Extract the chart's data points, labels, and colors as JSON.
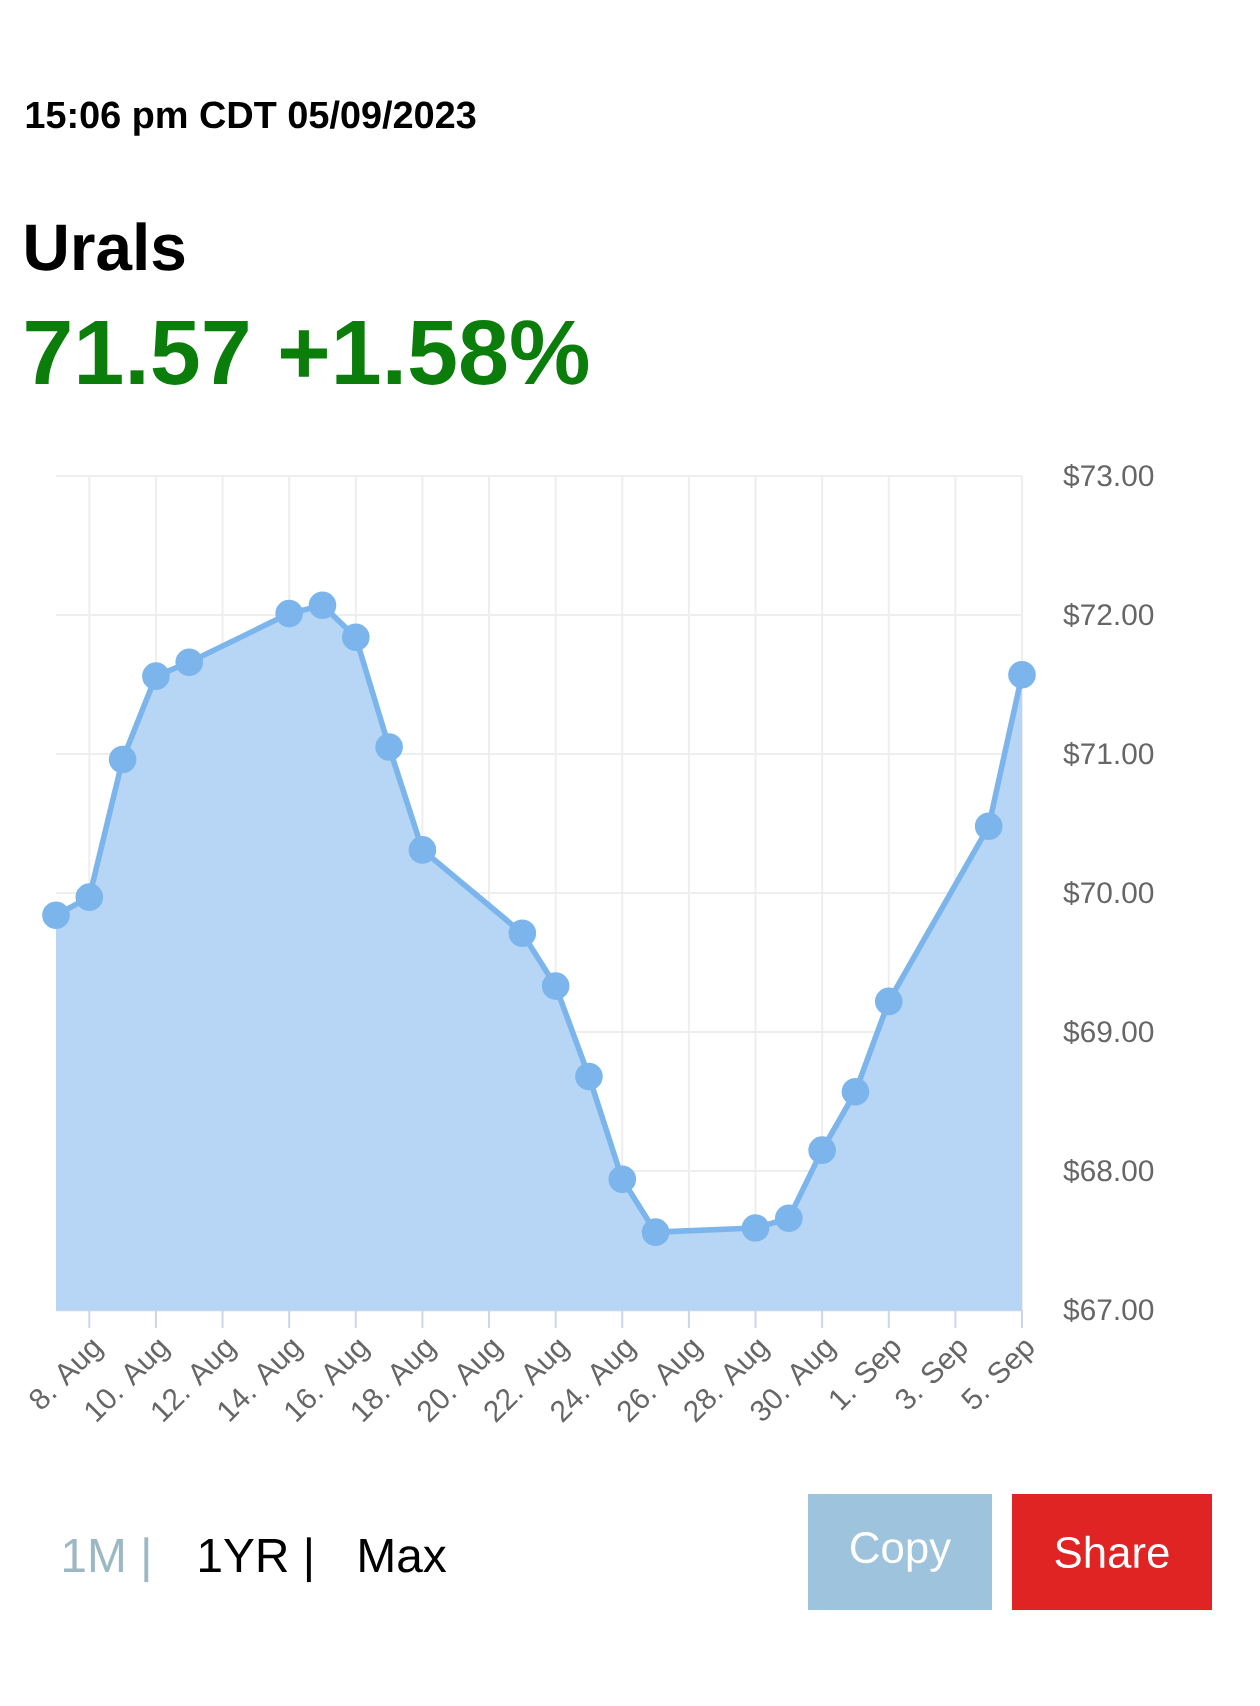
{
  "chart_data": {
    "type": "area",
    "title": "Urals",
    "subtitle": "71.57 +1.58%",
    "annotations": [
      "15:06 pm CDT 05/09/2023",
      "1M |",
      "1YR |",
      "Max",
      "Copy",
      "Share"
    ],
    "x": [
      "2023-08-07",
      "2023-08-08",
      "2023-08-09",
      "2023-08-10",
      "2023-08-11",
      "2023-08-14",
      "2023-08-15",
      "2023-08-16",
      "2023-08-17",
      "2023-08-18",
      "2023-08-21",
      "2023-08-22",
      "2023-08-23",
      "2023-08-24",
      "2023-08-25",
      "2023-08-28",
      "2023-08-29",
      "2023-08-30",
      "2023-08-31",
      "2023-09-01",
      "2023-09-04",
      "2023-09-05"
    ],
    "series": [
      {
        "color": "#7cb5ec",
        "values": [
          69.84,
          69.97,
          70.96,
          71.56,
          71.66,
          72.01,
          72.07,
          71.84,
          71.05,
          70.31,
          69.71,
          69.33,
          68.68,
          67.94,
          67.56,
          67.59,
          67.66,
          68.15,
          68.57,
          69.22,
          70.48,
          71.57
        ]
      }
    ],
    "xlim": [
      "2023-08-07",
      "2023-09-05"
    ],
    "xticks": [
      {
        "value": "2023-08-08",
        "label": "8. Aug"
      },
      {
        "value": "2023-08-10",
        "label": "10. Aug"
      },
      {
        "value": "2023-08-12",
        "label": "12. Aug"
      },
      {
        "value": "2023-08-14",
        "label": "14. Aug"
      },
      {
        "value": "2023-08-16",
        "label": "16. Aug"
      },
      {
        "value": "2023-08-18",
        "label": "18. Aug"
      },
      {
        "value": "2023-08-20",
        "label": "20. Aug"
      },
      {
        "value": "2023-08-22",
        "label": "22. Aug"
      },
      {
        "value": "2023-08-24",
        "label": "24. Aug"
      },
      {
        "value": "2023-08-26",
        "label": "26. Aug"
      },
      {
        "value": "2023-08-28",
        "label": "28. Aug"
      },
      {
        "value": "2023-08-30",
        "label": "30. Aug"
      },
      {
        "value": "2023-09-01",
        "label": "1. Sep"
      },
      {
        "value": "2023-09-03",
        "label": "3. Sep"
      },
      {
        "value": "2023-09-05",
        "label": "5. Sep"
      }
    ],
    "ylim": [
      67,
      73
    ],
    "yticks": [
      {
        "value": 67,
        "label": "$67.00"
      },
      {
        "value": 68,
        "label": "$68.00"
      },
      {
        "value": 69,
        "label": "$69.00"
      },
      {
        "value": 70,
        "label": "$70.00"
      },
      {
        "value": 71,
        "label": "$71.00"
      },
      {
        "value": 72,
        "label": "$72.00"
      },
      {
        "value": 73,
        "label": "$73.00"
      }
    ],
    "grid": true,
    "marker": "circle",
    "line_style": "solid"
  }
}
